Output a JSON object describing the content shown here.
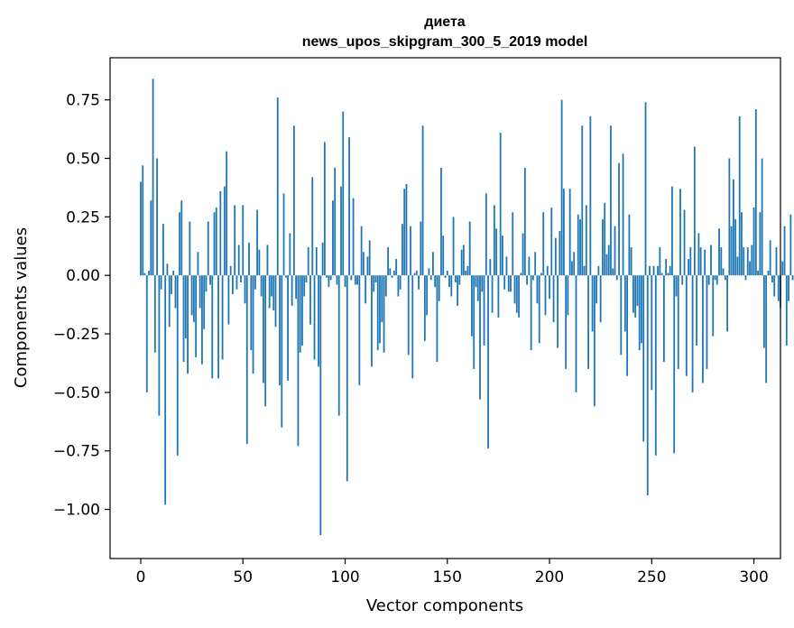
{
  "chart_data": {
    "type": "bar",
    "title": "диета",
    "subtitle": "news_upos_skipgram_300_5_2019 model",
    "xlabel": "Vector components",
    "ylabel": "Components values",
    "xlim": [
      -15,
      313
    ],
    "ylim": [
      -1.21,
      0.93
    ],
    "x_ticks": [
      0,
      50,
      100,
      150,
      200,
      250,
      300
    ],
    "y_ticks": [
      0.75,
      0.5,
      0.25,
      0.0,
      -0.25,
      -0.5,
      -0.75,
      -1.0
    ],
    "x_tick_labels": [
      "0",
      "50",
      "100",
      "150",
      "200",
      "250",
      "300"
    ],
    "y_tick_labels": [
      "0.75",
      "0.50",
      "0.25",
      "0.00",
      "−0.25",
      "−0.50",
      "−0.75",
      "−1.00"
    ],
    "bar_color": "#1f77b4",
    "grid": false,
    "values": [
      0.4,
      0.47,
      0.01,
      -0.5,
      0.02,
      0.32,
      0.84,
      -0.33,
      0.5,
      -0.6,
      -0.06,
      0.22,
      -0.98,
      0.05,
      -0.22,
      -0.08,
      0.02,
      -0.14,
      -0.77,
      0.27,
      0.32,
      -0.37,
      -0.27,
      -0.42,
      0.23,
      -0.17,
      -0.2,
      -0.35,
      0.1,
      -0.14,
      -0.38,
      -0.23,
      -0.07,
      0.23,
      -0.04,
      -0.44,
      0.27,
      0.29,
      -0.44,
      0.36,
      -0.36,
      0.38,
      0.53,
      -0.21,
      0.04,
      -0.08,
      0.3,
      -0.06,
      0.13,
      -0.03,
      0.3,
      -0.12,
      -0.72,
      0.14,
      -0.32,
      -0.42,
      -0.06,
      0.28,
      0.11,
      -0.09,
      -0.46,
      -0.56,
      0.13,
      -0.14,
      -0.09,
      -0.15,
      -0.22,
      0.76,
      -0.47,
      -0.65,
      0.35,
      -0.01,
      -0.45,
      0.18,
      -0.13,
      0.64,
      -0.1,
      -0.73,
      -0.33,
      -0.3,
      -0.09,
      -0.03,
      0.12,
      -0.21,
      0.42,
      -0.36,
      0.12,
      -0.39,
      -1.11,
      0.14,
      0.57,
      -0.01,
      -0.05,
      -0.02,
      0.32,
      0.46,
      -0.04,
      -0.6,
      0.38,
      0.7,
      -0.05,
      -0.88,
      0.59,
      -0.02,
      0.33,
      -0.04,
      -0.04,
      -0.47,
      0.21,
      0.1,
      -0.12,
      0.08,
      0.15,
      -0.39,
      -0.07,
      -0.03,
      -0.32,
      -0.29,
      -0.2,
      -0.33,
      -0.09,
      0.12,
      0.03,
      -0.01,
      0.02,
      0.07,
      -0.09,
      -0.06,
      0.22,
      0.37,
      0.39,
      -0.34,
      0.21,
      -0.44,
      0.01,
      0.02,
      -0.06,
      0.23,
      0.64,
      -0.28,
      -0.17,
      0.03,
      -0.02,
      0.1,
      -0.05,
      -0.37,
      -0.11,
      0.46,
      0.17,
      -0.01,
      0.02,
      -0.05,
      -0.09,
      0.25,
      -0.03,
      -0.13,
      -0.04,
      0.11,
      0.13,
      0.02,
      0.04,
      0.23,
      -0.26,
      -0.4,
      -0.05,
      -0.11,
      -0.53,
      -0.07,
      -0.3,
      0.35,
      -0.74,
      0.07,
      -0.16,
      0.3,
      0.2,
      -0.18,
      0.61,
      0.17,
      -0.06,
      0.08,
      -0.07,
      -0.07,
      0.27,
      -0.12,
      -0.16,
      -0.18,
      0.01,
      0.18,
      0.46,
      -0.04,
      0.08,
      -0.32,
      -0.02,
      0.1,
      -0.12,
      -0.29,
      0.01,
      0.27,
      -0.17,
      0.04,
      -0.1,
      0.29,
      -0.2,
      0.16,
      -0.31,
      0.19,
      0.75,
      0.37,
      -0.4,
      -0.17,
      0.37,
      0.06,
      0.1,
      -0.5,
      0.26,
      0.24,
      0.64,
      0.04,
      0.3,
      -0.4,
      0.68,
      -0.24,
      -0.56,
      -0.12,
      0.04,
      -0.2,
      0.24,
      0.31,
      0.09,
      0.13,
      0.64,
      0.03,
      0.21,
      -0.02,
      0.48,
      -0.34,
      0.52,
      -0.24,
      -0.43,
      0.26,
      0.12,
      -0.16,
      -0.18,
      -0.13,
      -0.32,
      -0.29,
      -0.71,
      0.74,
      -0.94,
      0.04,
      -0.49,
      0.04,
      -0.77,
      0.04,
      0.12,
      0.01,
      -0.37,
      0.07,
      0.01,
      0.04,
      0.38,
      -0.76,
      -0.09,
      -0.4,
      0.37,
      -0.04,
      0.28,
      -0.43,
      0.07,
      0.12,
      -0.5,
      0.55,
      -0.3,
      0.18,
      0.12,
      -0.46,
      0.11,
      -0.4,
      -0.04,
      0.13,
      -0.26,
      -0.02,
      -0.04,
      0.2,
      0.12,
      0.03,
      -0.02,
      -0.24,
      0.5,
      0.21,
      0.41,
      0.24,
      0.08,
      0.68,
      0.27,
      0.12,
      -0.02,
      0.12,
      0.06,
      0.13,
      0.29,
      0.71,
      0.02,
      0.27,
      0.5,
      -0.31,
      -0.46,
      0.02,
      0.15,
      -0.03,
      -0.09,
      0.12,
      -0.11,
      -0.14,
      0.06,
      0.21,
      -0.3,
      -0.11,
      0.26,
      -0.02,
      0.03
    ]
  }
}
